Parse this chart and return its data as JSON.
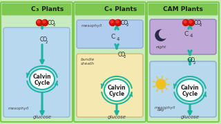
{
  "bg_color": "#c8ecc0",
  "panel_border_color": "#7ec850",
  "panel_fill": "#c8ecc0",
  "teal": "#1ab5a0",
  "c3_box_color": "#b8d8f0",
  "c3_box_edge": "#90b8d8",
  "c4_meso_color": "#b0ccee",
  "c4_meso_edge": "#90aad0",
  "c4_bs_color": "#f5e8b0",
  "c4_bs_edge": "#d0b870",
  "cam_night_color": "#c0a8d8",
  "cam_night_edge": "#9080b8",
  "cam_day_color": "#b8d8ee",
  "cam_day_edge": "#88aad0",
  "title_bar_color": "#7ec850",
  "title_fontsize": 6.5,
  "label_fontsize": 5.0,
  "small_fontsize": 4.2,
  "cycle_fontsize": 5.5,
  "co2_fontsize": 5.5,
  "glucose_fontsize": 5.0,
  "panels": [
    {
      "type": "c3",
      "title": "C",
      "title_sub": "3",
      "title_rest": " Plants"
    },
    {
      "type": "c4",
      "title": "C",
      "title_sub": "4",
      "title_rest": " Plants"
    },
    {
      "type": "cam",
      "title": "CAM Plants",
      "title_sub": "",
      "title_rest": ""
    }
  ]
}
